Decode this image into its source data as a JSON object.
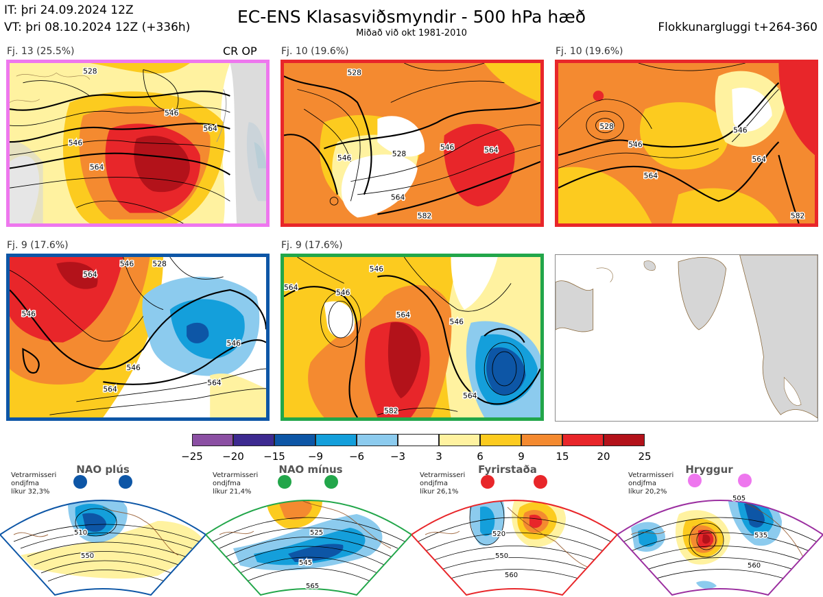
{
  "header": {
    "init_line": "IT: þri 24.09.2024 12Z",
    "valid_line": "VT: þri 08.10.2024 12Z  (+336h)",
    "title": "EC-ENS Klasasviðsmyndir - 500 hPa hæð",
    "subtitle": "Miðað við okt 1981-2010",
    "window": "Flokkunargluggi t+264-360"
  },
  "clusters": [
    {
      "label": "Fj. 13 (25.5%)",
      "tag": "CR OP",
      "border_color": "#ee77ee",
      "regime": "Hryggur"
    },
    {
      "label": "Fj. 10 (19.6%)",
      "tag": "",
      "border_color": "#e8262a",
      "regime": "Fyrirstaða"
    },
    {
      "label": "Fj. 10 (19.6%)",
      "tag": "",
      "border_color": "#e8262a",
      "regime": "Fyrirstaða"
    },
    {
      "label": "Fj. 9 (17.6%)",
      "tag": "",
      "border_color": "#0d56a6",
      "regime": "NAO plús"
    },
    {
      "label": "Fj. 9 (17.6%)",
      "tag": "",
      "border_color": "#22a64a",
      "regime": "NAO mínus"
    }
  ],
  "contour_labels": [
    [
      "528",
      "546",
      "564",
      "546",
      "564"
    ],
    [
      "528",
      "546",
      "528",
      "546",
      "564",
      "564",
      "582"
    ],
    [
      "528",
      "546",
      "546",
      "564",
      "564",
      "582"
    ],
    [
      "546",
      "546",
      "564",
      "528",
      "546",
      "546",
      "564",
      "564"
    ],
    [
      "546",
      "564",
      "546",
      "564",
      "546",
      "564",
      "582"
    ]
  ],
  "colorbar": {
    "ticks": [
      "−25",
      "−20",
      "−15",
      "−9",
      "−6",
      "−3",
      "3",
      "6",
      "9",
      "15",
      "20",
      "25"
    ],
    "colors": [
      "#8b4fa3",
      "#3d2a90",
      "#0d56a6",
      "#149fdb",
      "#8ccbee",
      "#ffffff",
      "#fff2a0",
      "#fccb1f",
      "#f48a30",
      "#e8262a",
      "#b3121a"
    ]
  },
  "regimes": [
    {
      "name": "NAO plús",
      "text_lines": [
        "Vetrarmisseri",
        "ondjfma",
        "líkur 32,3%"
      ],
      "color": "#0d56a6",
      "contours": [
        "510",
        "550"
      ]
    },
    {
      "name": "NAO mínus",
      "text_lines": [
        "Vetrarmisseri",
        "ondjfma",
        "líkur 21,4%"
      ],
      "color": "#22a64a",
      "contours": [
        "525",
        "545",
        "565"
      ]
    },
    {
      "name": "Fyrirstaða",
      "text_lines": [
        "Vetrarmisseri",
        "ondjfma",
        "líkur 26,1%"
      ],
      "color": "#e8262a",
      "contours": [
        "520",
        "550",
        "560"
      ]
    },
    {
      "name": "Hryggur",
      "text_lines": [
        "Vetrarmisseri",
        "ondjfma",
        "líkur 20,2%"
      ],
      "color": "#9b2fa0",
      "dot_color": "#ee77ee",
      "contours": [
        "505",
        "535",
        "560"
      ]
    }
  ]
}
